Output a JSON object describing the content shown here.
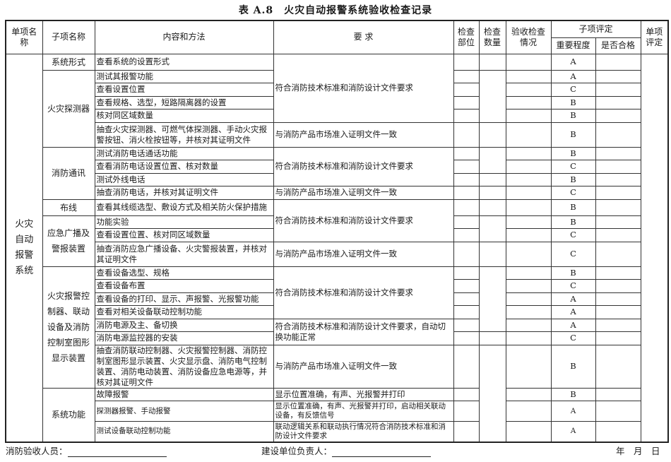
{
  "title": "表 A.8　火灾自动报警系统验收检查记录",
  "headers": {
    "item_name": "单项名称",
    "sub_item_name": "子项名称",
    "content_method": "内容和方法",
    "requirement": "要 求",
    "check_location": "检查部位",
    "check_quantity": "检查数量",
    "acceptance_status": "验收检查情况",
    "sub_item_eval": "子项评定",
    "importance": "重要程度",
    "qualified": "是否合格",
    "item_eval": "单项评定"
  },
  "system_name": "火灾自动报警系统",
  "system_name_lines": [
    "火灾",
    "自动",
    "报警",
    "系统"
  ],
  "groups": [
    {
      "name": "系统形式",
      "rowspan": 1
    },
    {
      "name": "火灾探测器",
      "rowspan": 5
    },
    {
      "name": "消防通讯",
      "rowspan": 4
    },
    {
      "name": "布线",
      "rowspan": 1
    },
    {
      "name": "应急广播及警报装置",
      "rowspan": 3
    },
    {
      "name": "火灾报警控制器、联动设备及消防控制室图形显示装置",
      "rowspan": 7
    },
    {
      "name": "系统功能",
      "rowspan": 3
    }
  ],
  "requirements": [
    {
      "text": "符合消防技术标准和消防设计文件要求",
      "rowspan": 5
    },
    {
      "text": "与消防产品市场准入证明文件一致",
      "rowspan": 1
    },
    {
      "text": "符合消防技术标准和消防设计文件要求",
      "rowspan": 3
    },
    {
      "text": "与消防产品市场准入证明文件一致",
      "rowspan": 1
    },
    {
      "text": "符合消防技术标准和消防设计文件要求",
      "rowspan": 3
    },
    {
      "text": "与消防产品市场准入证明文件一致",
      "rowspan": 1
    },
    {
      "text": "符合消防技术标准和消防设计文件要求",
      "rowspan": 4
    },
    {
      "text": "符合消防技术标准和消防设计文件要求，自动切换功能正常",
      "rowspan": 2
    },
    {
      "text": "与消防产品市场准入证明文件一致",
      "rowspan": 1
    },
    {
      "text": "显示位置准确，有声、光报警并打印",
      "rowspan": 1
    },
    {
      "text": "显示位置准确，有声、光报警并打印，启动相关联动设备，有反馈信号",
      "rowspan": 1
    },
    {
      "text": "联动逻辑关系和联动执行情况符合消防技术标准和消防设计文件要求",
      "rowspan": 1
    }
  ],
  "quantity_spans": [
    1,
    4,
    1,
    2,
    1,
    1,
    1,
    2,
    1,
    5,
    1,
    4
  ],
  "rows": [
    {
      "content": "查看系统的设置形式",
      "importance": "A",
      "size": "r1"
    },
    {
      "content": "测试其报警功能",
      "importance": "A",
      "size": "r1"
    },
    {
      "content": "查看设置位置",
      "importance": "C",
      "size": "r1"
    },
    {
      "content": "查看规格、选型，短路隔离器的设置",
      "importance": "B",
      "size": "r1"
    },
    {
      "content": "核对同区域数量",
      "importance": "B",
      "size": "r1"
    },
    {
      "content": "抽查火灾探测器、可燃气体探测器、手动火灾报警按钮、消火栓按钮等，并核对其证明文件",
      "importance": "B",
      "size": "r2"
    },
    {
      "content": "测试消防电话通话功能",
      "importance": "B",
      "size": "r1"
    },
    {
      "content": "查看消防电话设置位置、核对数量",
      "importance": "C",
      "size": "r1"
    },
    {
      "content": "测试外线电话",
      "importance": "B",
      "size": "r1"
    },
    {
      "content": "抽查消防电话，并核对其证明文件",
      "importance": "C",
      "size": "r1"
    },
    {
      "content": "查看其线缆选型、敷设方式及相关防火保护措施",
      "importance": "B",
      "size": "r1"
    },
    {
      "content": "功能实验",
      "importance": "B",
      "size": "r1"
    },
    {
      "content": "查看设置位置、核对同区域数量",
      "importance": "C",
      "size": "r1"
    },
    {
      "content": "抽查消防应急广播设备、火灾警报装置，并核对其证明文件",
      "importance": "C",
      "size": "r2"
    },
    {
      "content": "查看设备选型、规格",
      "importance": "B",
      "size": "r1"
    },
    {
      "content": "查看设备布置",
      "importance": "C",
      "size": "r1"
    },
    {
      "content": "查看设备的打印、显示、声报警、光报警功能",
      "importance": "A",
      "size": "r1"
    },
    {
      "content": "查看对相关设备联动控制功能",
      "importance": "A",
      "size": "r1"
    },
    {
      "content": "消防电源及主、备切换",
      "importance": "A",
      "size": "r1"
    },
    {
      "content": "消防电源监控器的安装",
      "importance": "C",
      "size": "r1"
    },
    {
      "content": "抽查消防联动控制器、火灾报警控制器、消防控制室图形显示装置、火灾显示盘、消防电气控制装置、消防电动装置、消防设备应急电源等，并核对其证明文件",
      "importance": "B",
      "size": "r4"
    },
    {
      "content": "故障报警",
      "importance": "B",
      "size": "r1"
    },
    {
      "content": "探测器报警、手动报警",
      "importance": "A",
      "size": "r2s"
    },
    {
      "content": "测试设备联动控制功能",
      "importance": "A",
      "size": "r2s"
    }
  ],
  "footer": {
    "inspector_label": "消防验收人员：",
    "owner_label": "建设单位负责人：",
    "date_label": "年　月　日"
  }
}
